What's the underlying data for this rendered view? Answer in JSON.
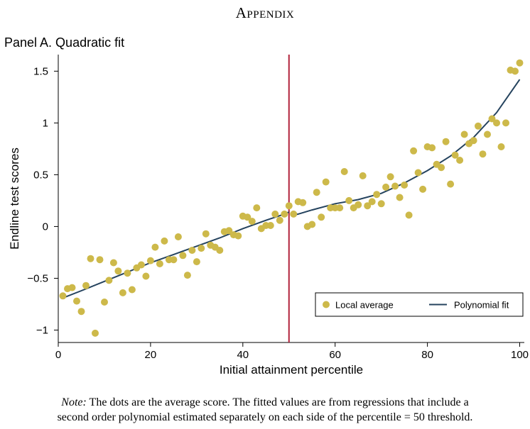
{
  "header": {
    "title": "Appendix"
  },
  "panel_title": "Panel A. Quadratic fit",
  "note": {
    "label": "Note:",
    "line1": "The dots are the average score. The fitted values are from regressions that include a",
    "line2": "second order polynomial estimated separately on each side of the percentile = 50 threshold."
  },
  "colors": {
    "dots": "#CDB94A",
    "fit_line": "#25435E",
    "threshold_line": "#B2223B"
  },
  "chart_data": {
    "type": "scatter",
    "title": "Panel A. Quadratic fit",
    "xlabel": "Initial attainment percentile",
    "ylabel": "Endline test scores",
    "xlim": [
      0,
      101
    ],
    "ylim": [
      -1.12,
      1.66
    ],
    "x_ticks": [
      0,
      20,
      40,
      60,
      80,
      100
    ],
    "x_tick_labels": [
      "0",
      "20",
      "40",
      "60",
      "80",
      "100"
    ],
    "y_ticks": [
      -1,
      -0.5,
      0,
      0.5,
      1,
      1.5
    ],
    "y_tick_labels": [
      "−1",
      "−0.5",
      "0",
      "0.5",
      "1",
      "1.5"
    ],
    "threshold": 50,
    "legend_position": "bottom-right",
    "series": [
      {
        "name": "Local average",
        "kind": "scatter",
        "points": [
          [
            1,
            -0.67
          ],
          [
            2,
            -0.6
          ],
          [
            3,
            -0.59
          ],
          [
            4,
            -0.72
          ],
          [
            5,
            -0.82
          ],
          [
            6,
            -0.57
          ],
          [
            7,
            -0.31
          ],
          [
            8,
            -1.03
          ],
          [
            9,
            -0.32
          ],
          [
            10,
            -0.73
          ],
          [
            11,
            -0.52
          ],
          [
            12,
            -0.35
          ],
          [
            13,
            -0.43
          ],
          [
            14,
            -0.64
          ],
          [
            15,
            -0.45
          ],
          [
            16,
            -0.61
          ],
          [
            17,
            -0.4
          ],
          [
            18,
            -0.37
          ],
          [
            19,
            -0.48
          ],
          [
            20,
            -0.33
          ],
          [
            21,
            -0.2
          ],
          [
            22,
            -0.36
          ],
          [
            23,
            -0.14
          ],
          [
            24,
            -0.32
          ],
          [
            25,
            -0.32
          ],
          [
            26,
            -0.1
          ],
          [
            27,
            -0.28
          ],
          [
            28,
            -0.47
          ],
          [
            29,
            -0.23
          ],
          [
            30,
            -0.34
          ],
          [
            31,
            -0.21
          ],
          [
            32,
            -0.07
          ],
          [
            33,
            -0.18
          ],
          [
            34,
            -0.2
          ],
          [
            35,
            -0.23
          ],
          [
            36,
            -0.05
          ],
          [
            37,
            -0.04
          ],
          [
            38,
            -0.08
          ],
          [
            39,
            -0.09
          ],
          [
            40,
            0.1
          ],
          [
            41,
            0.09
          ],
          [
            42,
            0.05
          ],
          [
            43,
            0.18
          ],
          [
            44,
            -0.02
          ],
          [
            45,
            0.01
          ],
          [
            46,
            0.01
          ],
          [
            47,
            0.12
          ],
          [
            48,
            0.06
          ],
          [
            49,
            0.12
          ],
          [
            50,
            0.2
          ],
          [
            51,
            0.12
          ],
          [
            52,
            0.24
          ],
          [
            53,
            0.23
          ],
          [
            54,
            0.0
          ],
          [
            55,
            0.02
          ],
          [
            56,
            0.33
          ],
          [
            57,
            0.09
          ],
          [
            58,
            0.43
          ],
          [
            59,
            0.18
          ],
          [
            60,
            0.18
          ],
          [
            61,
            0.18
          ],
          [
            62,
            0.53
          ],
          [
            63,
            0.25
          ],
          [
            64,
            0.18
          ],
          [
            65,
            0.21
          ],
          [
            66,
            0.49
          ],
          [
            67,
            0.2
          ],
          [
            68,
            0.24
          ],
          [
            69,
            0.31
          ],
          [
            70,
            0.22
          ],
          [
            71,
            0.38
          ],
          [
            72,
            0.48
          ],
          [
            73,
            0.39
          ],
          [
            74,
            0.28
          ],
          [
            75,
            0.4
          ],
          [
            76,
            0.11
          ],
          [
            77,
            0.73
          ],
          [
            78,
            0.52
          ],
          [
            79,
            0.36
          ],
          [
            80,
            0.77
          ],
          [
            81,
            0.76
          ],
          [
            82,
            0.6
          ],
          [
            83,
            0.57
          ],
          [
            84,
            0.82
          ],
          [
            85,
            0.41
          ],
          [
            86,
            0.69
          ],
          [
            87,
            0.64
          ],
          [
            88,
            0.89
          ],
          [
            89,
            0.8
          ],
          [
            90,
            0.83
          ],
          [
            91,
            0.97
          ],
          [
            92,
            0.7
          ],
          [
            93,
            0.89
          ],
          [
            94,
            1.04
          ],
          [
            95,
            1.0
          ],
          [
            96,
            0.77
          ],
          [
            97,
            1.0
          ],
          [
            98,
            1.51
          ],
          [
            99,
            1.5
          ],
          [
            100,
            1.58
          ]
        ]
      },
      {
        "name": "Polynomial fit",
        "kind": "line",
        "points": [
          [
            1,
            -0.69
          ],
          [
            5,
            -0.62
          ],
          [
            10,
            -0.53
          ],
          [
            15,
            -0.44
          ],
          [
            20,
            -0.35
          ],
          [
            25,
            -0.27
          ],
          [
            30,
            -0.19
          ],
          [
            35,
            -0.11
          ],
          [
            40,
            -0.02
          ],
          [
            45,
            0.06
          ],
          [
            49,
            0.12
          ],
          [
            50,
            0.14
          ],
          [
            51,
            0.11
          ],
          [
            52,
            0.12
          ],
          [
            55,
            0.16
          ],
          [
            60,
            0.22
          ],
          [
            65,
            0.26
          ],
          [
            70,
            0.32
          ],
          [
            75,
            0.42
          ],
          [
            80,
            0.54
          ],
          [
            85,
            0.68
          ],
          [
            90,
            0.86
          ],
          [
            95,
            1.1
          ],
          [
            100,
            1.42
          ]
        ]
      }
    ]
  }
}
